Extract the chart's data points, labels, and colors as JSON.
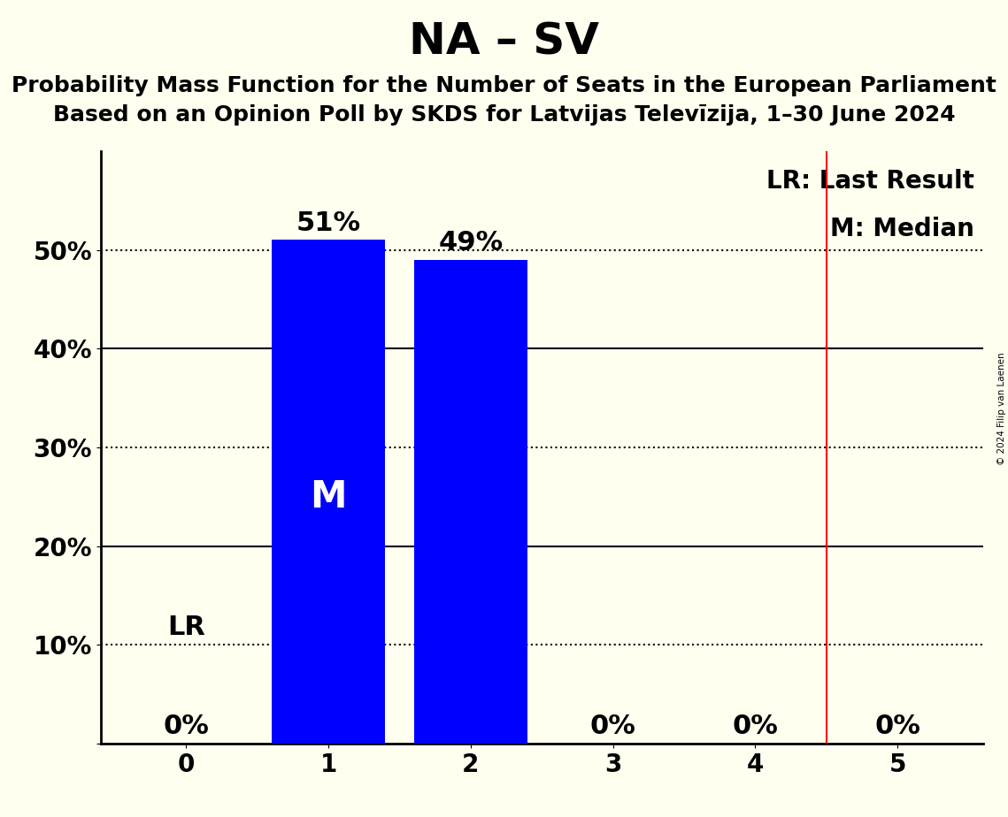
{
  "title": "NA – SV",
  "subtitle1": "Probability Mass Function for the Number of Seats in the European Parliament",
  "subtitle2": "Based on an Opinion Poll by SKDS for Latvijas Televīzija, 1–30 June 2024",
  "copyright": "© 2024 Filip van Laenen",
  "categories": [
    0,
    1,
    2,
    3,
    4,
    5
  ],
  "values": [
    0.0,
    0.51,
    0.49,
    0.0,
    0.0,
    0.0
  ],
  "bar_color": "#0000ff",
  "background_color": "#fffff0",
  "median_seat": 1,
  "last_result_seat": 4.5,
  "last_result_label": "LR",
  "median_label": "M",
  "ylim": [
    0,
    0.6
  ],
  "yticks": [
    0.0,
    0.1,
    0.2,
    0.3,
    0.4,
    0.5
  ],
  "ytick_labels": [
    "",
    "10%",
    "20%",
    "30%",
    "40%",
    "50%"
  ],
  "solid_lines": [
    0.2,
    0.4
  ],
  "dotted_lines": [
    0.1,
    0.3,
    0.5
  ],
  "title_fontsize": 36,
  "subtitle_fontsize": 18,
  "label_fontsize": 22,
  "tick_fontsize": 20,
  "bar_label_fontsize": 22,
  "legend_fontsize": 20,
  "bar_width": 0.8
}
